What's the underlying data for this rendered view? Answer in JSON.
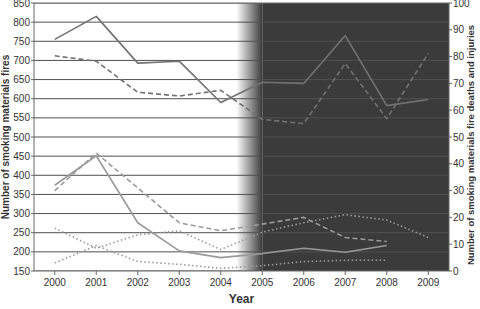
{
  "chart_data": {
    "type": "line",
    "x_label": "Year",
    "y_label": "Number of smoking materials fires",
    "y2_label": "Number of smoking materials fire deaths and injuries",
    "x": [
      2000,
      2001,
      2002,
      2003,
      2004,
      2005,
      2006,
      2007,
      2008,
      2009
    ],
    "xlim": [
      1999.5,
      2009.5
    ],
    "xticks": [
      2000,
      2001,
      2002,
      2003,
      2004,
      2005,
      2006,
      2007,
      2008,
      2009
    ],
    "ylim": [
      150,
      850
    ],
    "yticks": [
      150,
      200,
      250,
      300,
      350,
      400,
      450,
      500,
      550,
      600,
      650,
      700,
      750,
      800,
      850
    ],
    "y2lim": [
      0,
      100
    ],
    "y2ticks": [
      0,
      10,
      20,
      30,
      40,
      50,
      60,
      70,
      80,
      90,
      100
    ],
    "grid": true,
    "shaded_region": [
      2005,
      2009.5
    ],
    "series": [
      {
        "color": "#727272",
        "line_style": "solid",
        "values": [
          755,
          815,
          693,
          698,
          590,
          643,
          640,
          765,
          582,
          598
        ]
      },
      {
        "color": "#727272",
        "line_style": "dashed",
        "values": [
          712,
          698,
          617,
          607,
          622,
          546,
          535,
          692,
          548,
          718
        ]
      },
      {
        "color": "#9a9a9a",
        "line_style": "solid",
        "axis": "y2",
        "values": [
          32,
          43,
          18,
          7.5,
          5,
          6.5,
          8.5,
          7,
          9.5,
          null
        ]
      },
      {
        "color": "#9a9a9a",
        "line_style": "dashed",
        "axis": "y2",
        "values": [
          30,
          44,
          31,
          18,
          15,
          17.5,
          20,
          12.5,
          11,
          null
        ]
      },
      {
        "color": "#9a9a9a",
        "line_style": "dotted",
        "axis": "y2",
        "values": [
          16,
          8.5,
          13.5,
          15,
          8,
          14.5,
          18,
          21,
          19,
          12.5
        ]
      },
      {
        "color": "#9a9a9a",
        "line_style": "dotted",
        "axis": "y2",
        "values": [
          3,
          9.5,
          3.5,
          2.5,
          1,
          2,
          3.5,
          4,
          4,
          null
        ]
      }
    ]
  }
}
